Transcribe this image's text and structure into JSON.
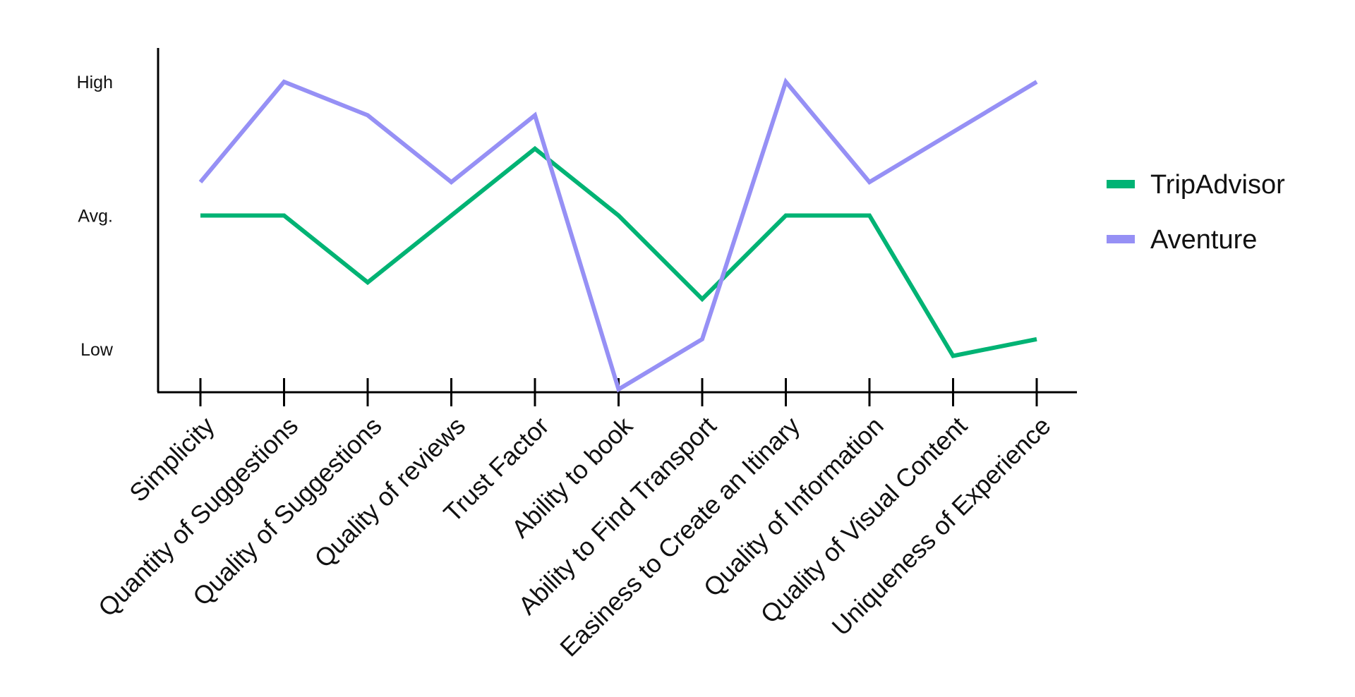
{
  "chart_data": {
    "type": "line",
    "categories": [
      "Simplicity",
      "Quantity of Suggestions",
      "Quality of Suggestions",
      "Quality of reviews",
      "Trust Factor",
      "Ability to book",
      "Ability to Find Transport",
      "Easiness to Create an Itinary",
      "Quality of Information",
      "Quality of Visual Content",
      "Uniqueness of Experience"
    ],
    "y_tick_labels": [
      "Low",
      "Avg.",
      "High"
    ],
    "y_tick_values": [
      1,
      3,
      5
    ],
    "ylim": [
      0.4,
      5.05
    ],
    "series": [
      {
        "name": "TripAdvisor",
        "color": "#00b374",
        "values": [
          3.0,
          3.0,
          2.0,
          3.0,
          4.0,
          3.0,
          1.75,
          3.0,
          3.0,
          0.9,
          1.15
        ]
      },
      {
        "name": "Aventure",
        "color": "#9690f5",
        "values": [
          3.5,
          5.0,
          4.5,
          3.5,
          4.5,
          0.4,
          1.15,
          5.0,
          3.5,
          4.25,
          5.0
        ]
      }
    ],
    "legend_position": "right",
    "grid": false
  }
}
